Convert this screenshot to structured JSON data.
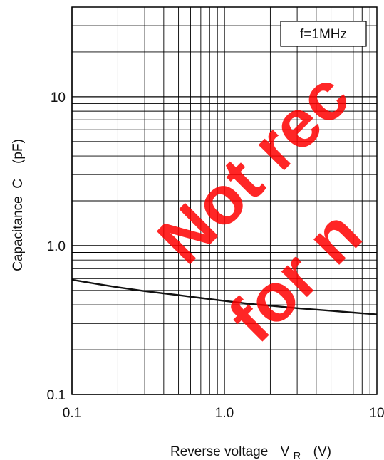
{
  "chart_data": {
    "type": "line",
    "xscale": "log",
    "yscale": "log",
    "xlim": [
      0.1,
      10
    ],
    "ylim": [
      0.1,
      40
    ],
    "grid": true,
    "xlabel": "Reverse voltage",
    "xlabel_symbol": "V",
    "xlabel_subscript": "R",
    "xlabel_unit": "(V)",
    "ylabel": "Capacitance  C    (pF)",
    "xticks": [
      {
        "value": 0.1,
        "label": "0.1"
      },
      {
        "value": 1,
        "label": "1.0"
      },
      {
        "value": 10,
        "label": "10"
      }
    ],
    "yticks": [
      {
        "value": 0.1,
        "label": "0.1"
      },
      {
        "value": 1,
        "label": "1.0"
      },
      {
        "value": 10,
        "label": "10"
      }
    ],
    "annotation": "f=1MHz",
    "series": [
      {
        "x": [
          0.1,
          0.15,
          0.2,
          0.3,
          0.5,
          0.7,
          1.0,
          1.5,
          2,
          3,
          5,
          7,
          10
        ],
        "y": [
          0.59,
          0.55,
          0.525,
          0.495,
          0.465,
          0.445,
          0.425,
          0.405,
          0.395,
          0.38,
          0.365,
          0.355,
          0.345
        ]
      }
    ]
  },
  "watermark": {
    "line1": "Not rec",
    "line2": "for n",
    "color": "#ff0000"
  }
}
